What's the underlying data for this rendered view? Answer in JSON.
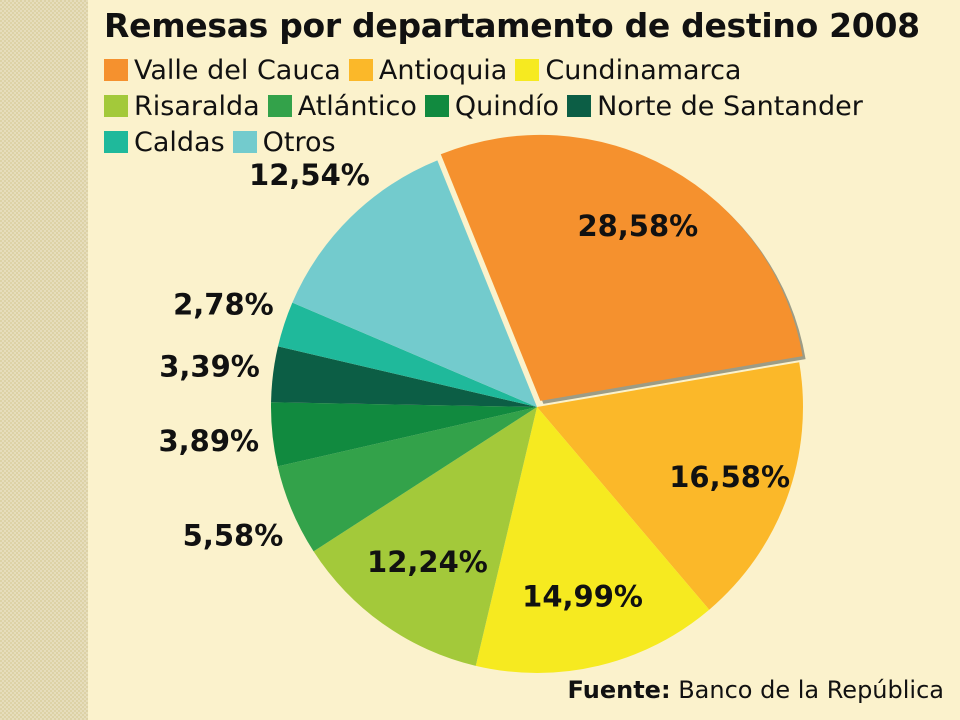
{
  "source": {
    "prefix": "Fuente:",
    "name": "Banco de la República"
  },
  "chart_data": {
    "type": "pie",
    "title": "Remesas por departamento de destino 2008",
    "legend_position": "top",
    "slices": [
      {
        "label": "Valle del Cauca",
        "value": 28.58,
        "display": "28,58%",
        "color": "#f5912e"
      },
      {
        "label": "Antioquia",
        "value": 16.58,
        "display": "16,58%",
        "color": "#fbb829"
      },
      {
        "label": "Cundinamarca",
        "value": 14.99,
        "display": "14,99%",
        "color": "#f6ea20"
      },
      {
        "label": "Risaralda",
        "value": 12.24,
        "display": "12,24%",
        "color": "#a3c93a"
      },
      {
        "label": "Atlántico",
        "value": 5.58,
        "display": "5,58%",
        "color": "#33a24a"
      },
      {
        "label": "Quindío",
        "value": 3.89,
        "display": "3,89%",
        "color": "#118a3f"
      },
      {
        "label": "Norte de Santander",
        "value": 3.39,
        "display": "3,39%",
        "color": "#0c5e45"
      },
      {
        "label": "Caldas",
        "value": 2.78,
        "display": "2,78%",
        "color": "#1fb99b"
      },
      {
        "label": "Otros",
        "value": 12.54,
        "display": "12,54%",
        "color": "#73cbcd"
      }
    ]
  }
}
